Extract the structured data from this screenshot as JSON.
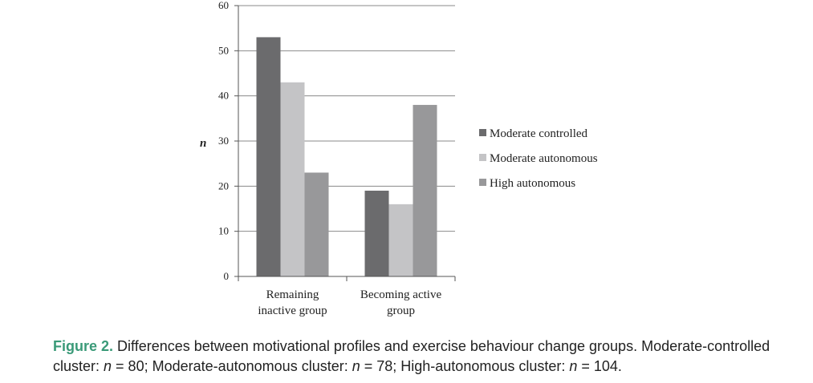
{
  "chart_data": {
    "type": "bar",
    "categories": [
      [
        "Remaining",
        "inactive group"
      ],
      [
        "Becoming active",
        "group"
      ]
    ],
    "series": [
      {
        "name": "Moderate controlled",
        "values": [
          53,
          19
        ],
        "color": "#6b6b6d"
      },
      {
        "name": "Moderate autonomous",
        "values": [
          43,
          16
        ],
        "color": "#c4c4c6"
      },
      {
        "name": "High autonomous",
        "values": [
          23,
          38
        ],
        "color": "#98989a"
      }
    ],
    "ylabel": "n",
    "ylim": [
      0,
      60
    ],
    "yticks": [
      0,
      10,
      20,
      30,
      40,
      50,
      60
    ],
    "grid": true,
    "legend_position": "right"
  },
  "caption": {
    "label": "Figure 2.",
    "text_1": " Differences between motivational profiles and exercise behaviour change groups. Moderate-controlled cluster: ",
    "n_symbol_1": "n",
    "text_2": " = 80; Moderate-autonomous cluster: ",
    "n_symbol_2": "n",
    "text_3": " = 78; High-autonomous cluster: ",
    "n_symbol_3": "n",
    "text_4": " = 104."
  }
}
